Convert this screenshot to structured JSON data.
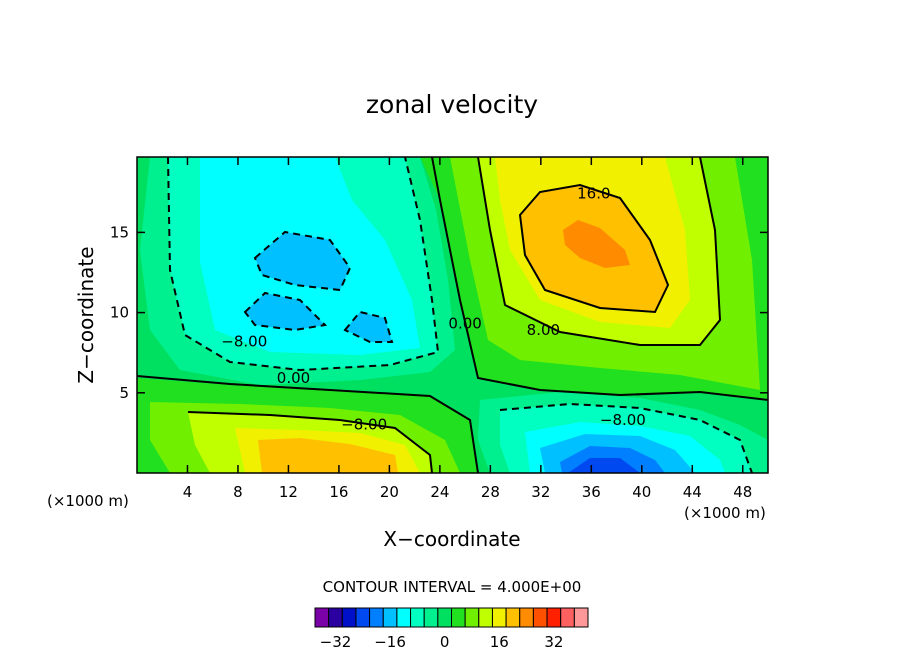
{
  "chart_data": {
    "type": "contour",
    "title": "zonal velocity",
    "xlabel": "X−coordinate",
    "ylabel": "Z−coordinate",
    "x_units_left": "(×1000 m)",
    "x_units_right": "(×1000 m)",
    "xlim": [
      0,
      50
    ],
    "ylim": [
      0,
      19.7
    ],
    "x_ticks": [
      4,
      8,
      12,
      16,
      20,
      24,
      28,
      32,
      36,
      40,
      44,
      48
    ],
    "y_ticks": [
      5,
      10,
      15
    ],
    "contour_interval_text": "CONTOUR INTERVAL = 4.000E+00",
    "contour_labels": [
      {
        "text": "16.0",
        "x": 36.2,
        "z": 17.1
      },
      {
        "text": "8.00",
        "x": 32.2,
        "z": 8.6
      },
      {
        "text": "0.00",
        "x": 26.0,
        "z": 9.0
      },
      {
        "text": "−8.00",
        "x": 8.5,
        "z": 7.9
      },
      {
        "text": "0.00",
        "x": 12.4,
        "z": 5.6
      },
      {
        "text": "−8.00",
        "x": 18.0,
        "z": 2.7
      },
      {
        "text": "−8.00",
        "x": 38.5,
        "z": 3.0
      }
    ],
    "colorbar": {
      "levels": [
        -36,
        -32,
        -28,
        -24,
        -20,
        -16,
        -12,
        -8,
        -4,
        0,
        4,
        8,
        12,
        16,
        20,
        24,
        28,
        32,
        36
      ],
      "colors": [
        "#7a00a8",
        "#2b00a0",
        "#0010c8",
        "#0048f0",
        "#0080ff",
        "#00c0ff",
        "#00ffff",
        "#00ffc0",
        "#00f090",
        "#00e060",
        "#20e020",
        "#70f000",
        "#c0ff00",
        "#f0f000",
        "#ffc000",
        "#ff8c00",
        "#ff5000",
        "#ff2000",
        "#ff6060",
        "#ff9999"
      ],
      "tick_labels": [
        "−32",
        "−16",
        "0",
        "16",
        "32"
      ],
      "tick_values": [
        -32,
        -16,
        0,
        16,
        32
      ]
    }
  }
}
